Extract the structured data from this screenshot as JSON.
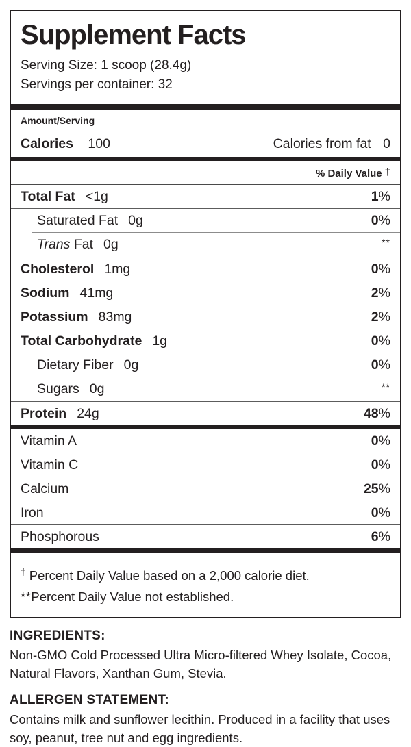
{
  "colors": {
    "label_black": "#231f20"
  },
  "label": {
    "title": "Supplement Facts",
    "serving_size": "Serving Size: 1 scoop (28.4g)",
    "servings_per_container": "Servings per container: 32",
    "amount_serving_header": "Amount/Serving",
    "calories": {
      "label": "Calories",
      "value": "100",
      "from_fat_label": "Calories from fat",
      "from_fat_value": "0"
    },
    "daily_value_header": "% Daily Value",
    "daily_value_marker": "†",
    "nutrients": [
      {
        "name": "Total Fat",
        "amount": "<1g",
        "dv": "1%",
        "bold": true
      },
      {
        "name": "Saturated Fat",
        "amount": "0g",
        "dv": "0%",
        "indent": true,
        "sep": "full"
      },
      {
        "name": "Trans Fat",
        "amount": "0g",
        "dv": "**",
        "indent": true,
        "italic_prefix": "Trans",
        "sep": "inset"
      },
      {
        "name": "Cholesterol",
        "amount": "1mg",
        "dv": "0%",
        "bold": true,
        "sep": "full"
      },
      {
        "name": "Sodium",
        "amount": "41mg",
        "dv": "2%",
        "bold": true,
        "sep": "full"
      },
      {
        "name": "Potassium",
        "amount": "83mg",
        "dv": "2%",
        "bold": true,
        "sep": "full"
      },
      {
        "name": "Total Carbohydrate",
        "amount": "1g",
        "dv": "0%",
        "bold": true,
        "sep": "full"
      },
      {
        "name": "Dietary Fiber",
        "amount": "0g",
        "dv": "0%",
        "indent": true,
        "sep": "full"
      },
      {
        "name": "Sugars",
        "amount": "0g",
        "dv": "**",
        "indent": true,
        "sep": "inset"
      },
      {
        "name": "Protein",
        "amount": "24g",
        "dv": "48%",
        "bold": true,
        "sep": "full"
      }
    ],
    "vitamins": [
      {
        "name": "Vitamin A",
        "dv": "0%"
      },
      {
        "name": "Vitamin C",
        "dv": "0%",
        "sep": "full"
      },
      {
        "name": "Calcium",
        "dv": "25%",
        "sep": "full"
      },
      {
        "name": "Iron",
        "dv": "0%",
        "sep": "full"
      },
      {
        "name": "Phosphorous",
        "dv": "6%",
        "sep": "full"
      }
    ],
    "footnotes": [
      {
        "marker": "†",
        "text": "Percent Daily Value based on a 2,000 calorie diet."
      },
      {
        "marker": "**",
        "text": "Percent Daily Value not established."
      }
    ]
  },
  "ingredients": {
    "heading": "INGREDIENTS:",
    "text": "Non-GMO Cold Processed Ultra Micro-filtered Whey Isolate, Cocoa, Natural Flavors, Xanthan Gum, Stevia."
  },
  "allergen": {
    "heading": "ALLERGEN STATEMENT:",
    "text": "Contains milk and sunflower lecithin. Produced in a facility that uses soy, peanut, tree nut and egg ingredients."
  }
}
